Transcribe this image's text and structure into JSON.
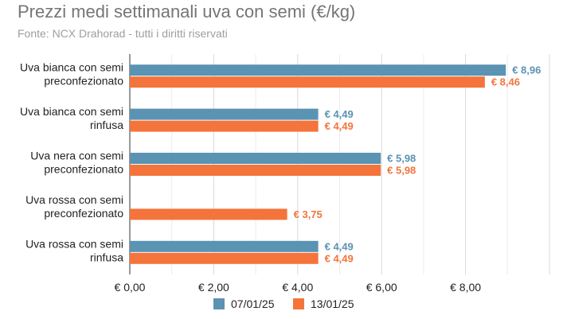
{
  "chart_data": {
    "type": "bar",
    "orientation": "horizontal",
    "title": "Prezzi medi settimanali uva con semi (€/kg)",
    "subtitle": "Fonte: NCX Drahorad - tutti i diritti riservati",
    "categories": [
      [
        "Uva bianca con semi",
        "preconfezionato"
      ],
      [
        "Uva bianca con semi",
        "rinfusa"
      ],
      [
        "Uva nera con semi",
        "preconfezionato"
      ],
      [
        "Uva rossa con semi",
        "preconfezionato"
      ],
      [
        "Uva rossa con semi",
        "rinfusa"
      ]
    ],
    "series": [
      {
        "name": "07/01/25",
        "color": "#5b93b3",
        "values": [
          8.96,
          4.49,
          5.98,
          null,
          4.49
        ],
        "labels": [
          "€ 8,96",
          "€ 4,49",
          "€ 5,98",
          "",
          "€ 4,49"
        ]
      },
      {
        "name": "13/01/25",
        "color": "#f4743b",
        "values": [
          8.46,
          4.49,
          5.98,
          3.75,
          4.49
        ],
        "labels": [
          "€ 8,46",
          "€ 4,49",
          "€ 5,98",
          "€ 3,75",
          "€ 4,49"
        ]
      }
    ],
    "xlim": [
      0,
      10
    ],
    "xticks": [
      0,
      2,
      4,
      6,
      8
    ],
    "xtick_labels": [
      "€ 0,00",
      "€ 2,00",
      "€ 4,00",
      "€ 6,00",
      "€ 8,00"
    ],
    "grid": true,
    "legend_position": "bottom",
    "xlabel": "",
    "ylabel": ""
  }
}
